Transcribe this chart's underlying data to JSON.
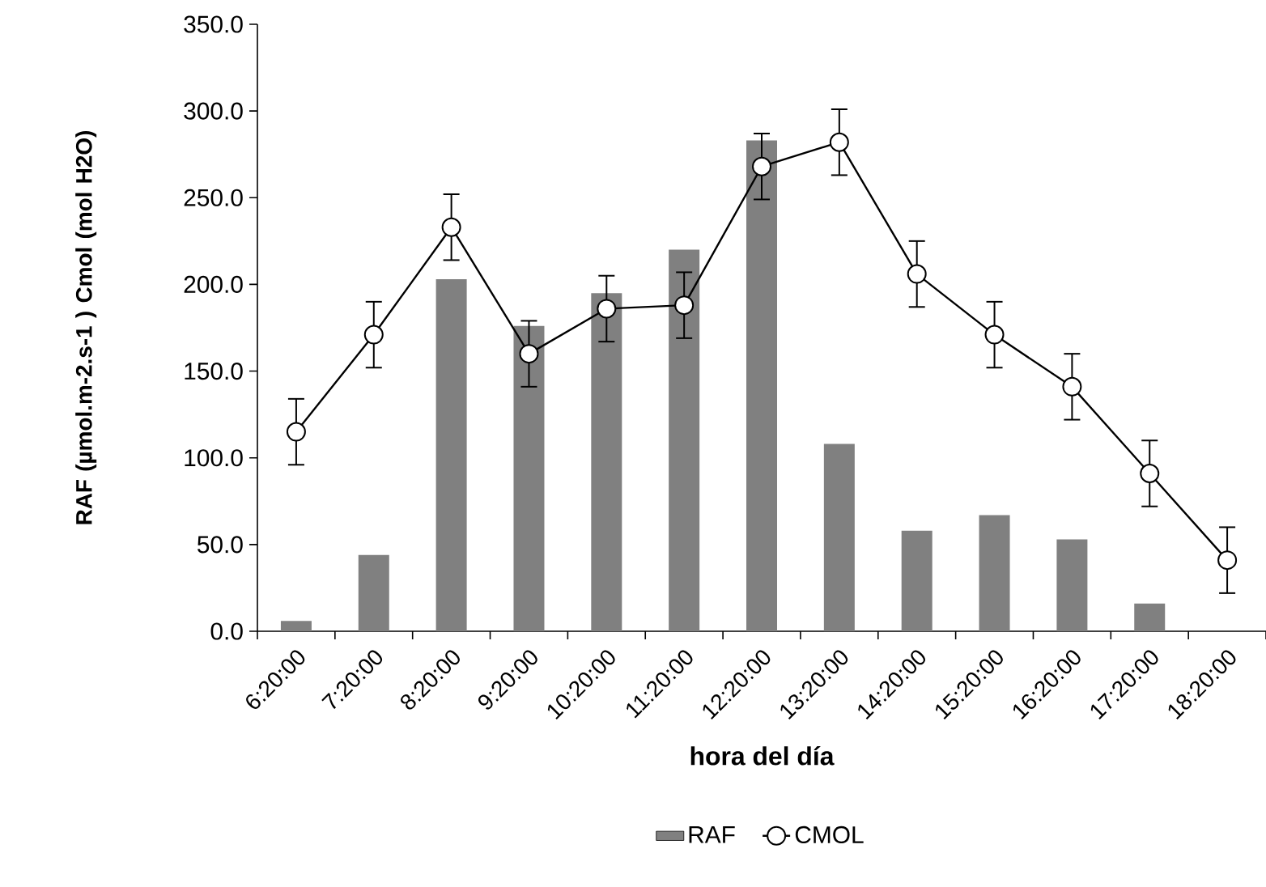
{
  "chart_data": {
    "type": "bar",
    "xlabel": "hora del día",
    "ylabel": "RAF (µmol.m-2.s-1 ) Cmol (mol H2O)",
    "categories": [
      "6:20:00",
      "7:20:00",
      "8:20:00",
      "9:20:00",
      "10:20:00",
      "11:20:00",
      "12:20:00",
      "13:20:00",
      "14:20:00",
      "15:20:00",
      "16:20:00",
      "17:20:00",
      "18:20:00"
    ],
    "series": [
      {
        "name": "RAF",
        "color": "#808080",
        "values": [
          6,
          44,
          203,
          176,
          195,
          220,
          283,
          108,
          58,
          67,
          53,
          16,
          null
        ]
      },
      {
        "name": "CMOL",
        "type": "line",
        "color": "#000000",
        "values": [
          115,
          171,
          233,
          160,
          186,
          188,
          268,
          282,
          206,
          171,
          141,
          91,
          41
        ],
        "errors": [
          19,
          19,
          19,
          19,
          19,
          19,
          19,
          19,
          19,
          19,
          19,
          19,
          19
        ]
      }
    ],
    "ylim": [
      0,
      350
    ],
    "yticks": [
      {
        "value": 0,
        "label": "0.0"
      },
      {
        "value": 50,
        "label": "50.0"
      },
      {
        "value": 100,
        "label": "100.0"
      },
      {
        "value": 150,
        "label": "150.0"
      },
      {
        "value": 200,
        "label": "200.0"
      },
      {
        "value": 250,
        "label": "250.0"
      },
      {
        "value": 300,
        "label": "300.0"
      },
      {
        "value": 350,
        "label": "350.0"
      }
    ],
    "legend": "bottom",
    "marker": "circle",
    "line_style": "solid"
  }
}
